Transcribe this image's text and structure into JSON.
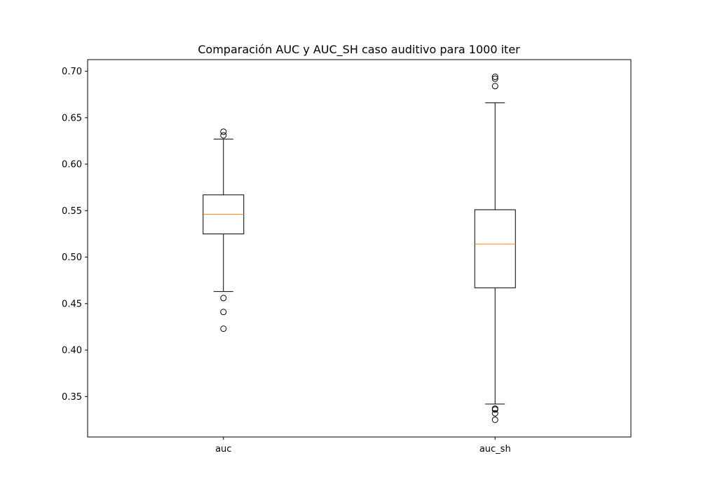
{
  "chart_data": {
    "type": "boxplot",
    "title": "Comparación AUC y AUC_SH caso auditivo para 1000 iter",
    "xlabel": "",
    "ylabel": "",
    "ylim": [
      0.3065,
      0.7125
    ],
    "yticks": [
      "0.35",
      "0.40",
      "0.45",
      "0.50",
      "0.55",
      "0.60",
      "0.65",
      "0.70"
    ],
    "grid": false,
    "categories": [
      "auc",
      "auc_sh"
    ],
    "boxes": [
      {
        "label": "auc",
        "whisker_low": 0.463,
        "q1": 0.525,
        "median": 0.546,
        "q3": 0.567,
        "whisker_high": 0.627,
        "outliers": [
          0.423,
          0.441,
          0.456,
          0.631,
          0.635
        ]
      },
      {
        "label": "auc_sh",
        "whisker_low": 0.342,
        "q1": 0.467,
        "median": 0.514,
        "q3": 0.551,
        "whisker_high": 0.666,
        "outliers": [
          0.325,
          0.332,
          0.336,
          0.337,
          0.684,
          0.692,
          0.694
        ]
      }
    ],
    "colors": {
      "box": "#000000",
      "median": "#ff7f0e",
      "background": "#ffffff"
    }
  }
}
